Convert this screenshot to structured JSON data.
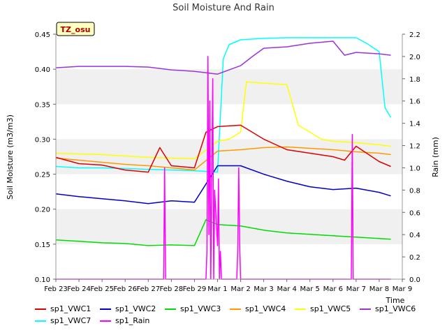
{
  "chart_data": {
    "type": "line",
    "title": "Soil Moisture And Rain",
    "site_label": "TZ_osu",
    "ylabel": "Soil Moisture (m3/m3)",
    "y2label": "Rain (mm)",
    "xlabel": "Time",
    "ylim": [
      0.1,
      0.45
    ],
    "y2lim": [
      0.0,
      2.2
    ],
    "xlim": [
      "2024-02-23",
      "2024-03-09"
    ],
    "x_ticks": [
      "Feb 23",
      "Feb 24",
      "Feb 25",
      "Feb 26",
      "Feb 27",
      "Feb 28",
      "Feb 29",
      "Mar 1",
      "Mar 2",
      "Mar 3",
      "Mar 4",
      "Mar 5",
      "Mar 6",
      "Mar 7",
      "Mar 8",
      "Mar 9"
    ],
    "y_ticks": [
      "0.10",
      "0.15",
      "0.20",
      "0.25",
      "0.30",
      "0.35",
      "0.40",
      "0.45"
    ],
    "y2_ticks": [
      "0.0",
      "0.2",
      "0.4",
      "0.6",
      "0.8",
      "1.0",
      "1.2",
      "1.4",
      "1.6",
      "1.8",
      "2.0",
      "2.2"
    ],
    "grid": "horizontal bands",
    "legend_position": "bottom",
    "series": [
      {
        "name": "sp1_VWC1",
        "color": "#dd0000",
        "axis": "left",
        "x": [
          "2024-02-23",
          "2024-02-24",
          "2024-02-25",
          "2024-02-26",
          "2024-02-27",
          "2024-02-27T12:00",
          "2024-02-28",
          "2024-02-29",
          "2024-02-29T12:00",
          "2024-03-01",
          "2024-03-02",
          "2024-03-02T12:00",
          "2024-03-03",
          "2024-03-04",
          "2024-03-05",
          "2024-03-06",
          "2024-03-06T12:00",
          "2024-03-07",
          "2024-03-08",
          "2024-03-08T12:00"
        ],
        "values": [
          0.274,
          0.265,
          0.263,
          0.256,
          0.253,
          0.288,
          0.262,
          0.259,
          0.31,
          0.318,
          0.32,
          0.31,
          0.3,
          0.285,
          0.28,
          0.275,
          0.27,
          0.29,
          0.268,
          0.261
        ]
      },
      {
        "name": "sp1_VWC2",
        "color": "#0000cc",
        "axis": "left",
        "x": [
          "2024-02-23",
          "2024-02-24",
          "2024-02-25",
          "2024-02-26",
          "2024-02-27",
          "2024-02-28",
          "2024-02-29",
          "2024-03-01",
          "2024-03-02",
          "2024-03-03",
          "2024-03-04",
          "2024-03-05",
          "2024-03-06",
          "2024-03-07",
          "2024-03-08",
          "2024-03-08T12:00"
        ],
        "values": [
          0.222,
          0.218,
          0.215,
          0.212,
          0.208,
          0.212,
          0.21,
          0.262,
          0.262,
          0.25,
          0.24,
          0.232,
          0.228,
          0.23,
          0.224,
          0.219
        ]
      },
      {
        "name": "sp1_VWC3",
        "color": "#00dd00",
        "axis": "left",
        "x": [
          "2024-02-23",
          "2024-02-24",
          "2024-02-25",
          "2024-02-26",
          "2024-02-27",
          "2024-02-28",
          "2024-02-29",
          "2024-02-29T12:00",
          "2024-03-01",
          "2024-03-02",
          "2024-03-03",
          "2024-03-04",
          "2024-03-05",
          "2024-03-06",
          "2024-03-07",
          "2024-03-08",
          "2024-03-08T12:00"
        ],
        "values": [
          0.156,
          0.154,
          0.152,
          0.151,
          0.148,
          0.149,
          0.148,
          0.185,
          0.178,
          0.176,
          0.17,
          0.166,
          0.164,
          0.162,
          0.16,
          0.158,
          0.157
        ]
      },
      {
        "name": "sp1_VWC4",
        "color": "#ff9900",
        "axis": "left",
        "x": [
          "2024-02-23",
          "2024-02-24",
          "2024-02-25",
          "2024-02-26",
          "2024-02-27",
          "2024-02-28",
          "2024-02-29",
          "2024-03-01",
          "2024-03-02",
          "2024-03-03",
          "2024-03-04",
          "2024-03-05",
          "2024-03-06",
          "2024-03-07",
          "2024-03-08",
          "2024-03-08T12:00"
        ],
        "values": [
          0.273,
          0.27,
          0.267,
          0.264,
          0.262,
          0.259,
          0.256,
          0.283,
          0.285,
          0.288,
          0.289,
          0.287,
          0.285,
          0.282,
          0.28,
          0.278
        ]
      },
      {
        "name": "sp1_VWC5",
        "color": "#ffff00",
        "axis": "left",
        "x": [
          "2024-02-23",
          "2024-02-24",
          "2024-02-25",
          "2024-02-26",
          "2024-02-27",
          "2024-02-28",
          "2024-02-29",
          "2024-03-01",
          "2024-03-01T12:00",
          "2024-03-02",
          "2024-03-02T06:00",
          "2024-03-03",
          "2024-03-04",
          "2024-03-04T12:00",
          "2024-03-05",
          "2024-03-05T12:00",
          "2024-03-06",
          "2024-03-07",
          "2024-03-08",
          "2024-03-08T12:00"
        ],
        "values": [
          0.28,
          0.279,
          0.278,
          0.276,
          0.274,
          0.273,
          0.272,
          0.297,
          0.3,
          0.31,
          0.382,
          0.38,
          0.378,
          0.32,
          0.31,
          0.3,
          0.297,
          0.295,
          0.292,
          0.29
        ]
      },
      {
        "name": "sp1_VWC6",
        "color": "#9933dd",
        "axis": "left",
        "x": [
          "2024-02-23",
          "2024-02-24",
          "2024-02-25",
          "2024-02-26",
          "2024-02-27",
          "2024-02-28",
          "2024-02-29",
          "2024-03-01",
          "2024-03-02",
          "2024-03-02T12:00",
          "2024-03-03",
          "2024-03-04",
          "2024-03-05",
          "2024-03-06",
          "2024-03-06T12:00",
          "2024-03-07",
          "2024-03-08",
          "2024-03-08T12:00"
        ],
        "values": [
          0.402,
          0.404,
          0.404,
          0.404,
          0.403,
          0.399,
          0.397,
          0.393,
          0.405,
          0.418,
          0.43,
          0.432,
          0.437,
          0.44,
          0.42,
          0.424,
          0.422,
          0.42
        ]
      },
      {
        "name": "sp1_VWC7",
        "color": "#00ffff",
        "axis": "left",
        "x": [
          "2024-02-23",
          "2024-02-24",
          "2024-02-25",
          "2024-02-26",
          "2024-02-27",
          "2024-02-28",
          "2024-02-29",
          "2024-03-01",
          "2024-03-01T06:00",
          "2024-03-01T12:00",
          "2024-03-02",
          "2024-03-03",
          "2024-03-04",
          "2024-03-05",
          "2024-03-06",
          "2024-03-07",
          "2024-03-07T12:00",
          "2024-03-08",
          "2024-03-08T06:00",
          "2024-03-08T12:00"
        ],
        "values": [
          0.261,
          0.259,
          0.259,
          0.258,
          0.257,
          0.256,
          0.255,
          0.253,
          0.415,
          0.435,
          0.442,
          0.444,
          0.445,
          0.445,
          0.445,
          0.445,
          0.436,
          0.425,
          0.345,
          0.331
        ]
      },
      {
        "name": "sp1_Rain",
        "color": "#ff00ff",
        "axis": "right",
        "x": [
          "2024-02-23",
          "2024-02-27T16:00",
          "2024-02-27T17:00",
          "2024-02-27T18:00",
          "2024-02-29T12:00",
          "2024-02-29T13:00",
          "2024-02-29T14:00",
          "2024-02-29T15:00",
          "2024-02-29T16:00",
          "2024-02-29T17:00",
          "2024-02-29T19:00",
          "2024-02-29T20:00",
          "2024-02-29T21:00",
          "2024-03-01",
          "2024-03-01T01:00",
          "2024-03-01T02:00",
          "2024-03-01T03:00",
          "2024-03-01T04:00",
          "2024-03-01T05:00",
          "2024-03-01T20:00",
          "2024-03-01T21:00",
          "2024-03-01T22:00",
          "2024-03-01T23:00",
          "2024-03-02",
          "2024-03-02T01:00",
          "2024-03-02T02:00",
          "2024-03-06T19:00",
          "2024-03-06T20:00",
          "2024-03-06T21:00",
          "2024-03-08T12:00"
        ],
        "values": [
          0.0,
          0.0,
          1.0,
          0.0,
          0.0,
          0.25,
          2.0,
          0.4,
          1.6,
          0.0,
          1.8,
          0.0,
          0.8,
          0.3,
          0.9,
          0.0,
          0.25,
          0.0,
          0.0,
          0.0,
          0.25,
          1.0,
          0.3,
          0.0,
          0.0,
          0.0,
          0.0,
          1.3,
          0.0,
          0.0
        ]
      }
    ]
  }
}
